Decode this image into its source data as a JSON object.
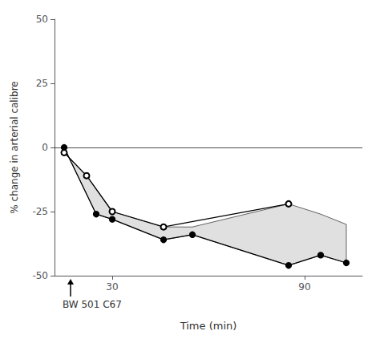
{
  "chart_data": {
    "type": "line",
    "xlabel": "Time (min)",
    "ylabel": "% change in arterial calibre",
    "xlim": [
      12,
      108
    ],
    "ylim": [
      -50,
      50
    ],
    "xticks": [
      30,
      90
    ],
    "yticks": [
      -50,
      -25,
      0,
      25,
      50
    ],
    "grid": false,
    "reference_lines": [
      0
    ],
    "series": [
      {
        "x": [
          15,
          22,
          30,
          46,
          85
        ],
        "values": [
          -2,
          -11,
          -25,
          -31,
          -22
        ],
        "marker": "open_circle",
        "color": "#000000"
      },
      {
        "x": [
          15,
          25,
          30,
          46,
          55,
          85,
          95,
          103
        ],
        "values": [
          0,
          -26,
          -28,
          -36,
          -34,
          -46,
          -42,
          -45
        ],
        "marker": "filled_circle",
        "color": "#000000"
      }
    ],
    "band": {
      "x": [
        15,
        22,
        30,
        46,
        55,
        85,
        95,
        103
      ],
      "upper": [
        -2,
        -11,
        -25,
        -31,
        -31,
        -22,
        -26,
        -30
      ],
      "lower_x": [
        15,
        25,
        30,
        46,
        55,
        85,
        95,
        103
      ],
      "lower": [
        0,
        -26,
        -28,
        -36,
        -34,
        -46,
        -42,
        -45
      ]
    },
    "annotations": [
      {
        "text": "BW 501 C67",
        "x": 17
      }
    ]
  }
}
